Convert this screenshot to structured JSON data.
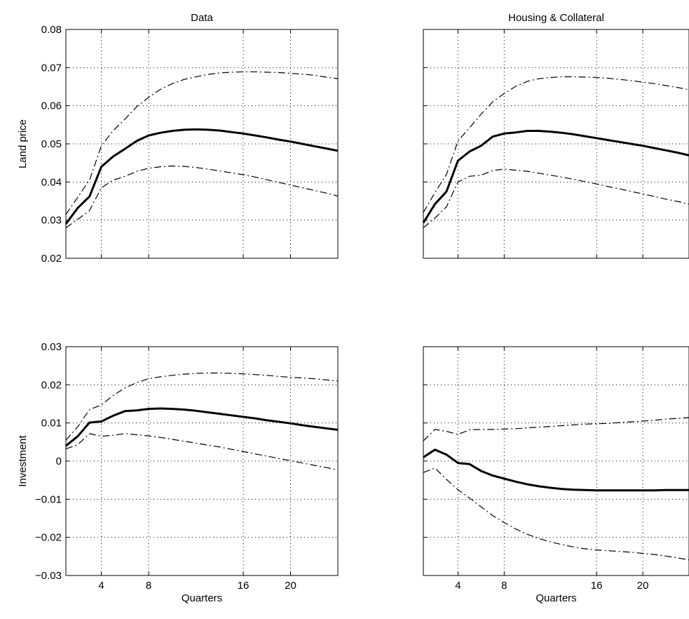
{
  "chart_data": [
    {
      "type": "line",
      "title": "Data",
      "xlabel": "",
      "ylabel": "Land price",
      "xlim": [
        1,
        24
      ],
      "ylim": [
        0.02,
        0.08
      ],
      "xticks": [
        4,
        8,
        16,
        20
      ],
      "xtick_labels": [],
      "yticks": [
        0.02,
        0.03,
        0.04,
        0.05,
        0.06,
        0.07,
        0.08
      ],
      "ytick_labels": [
        "0.02",
        "0.03",
        "0.04",
        "0.05",
        "0.06",
        "0.07",
        "0.08"
      ],
      "grid": true,
      "x": [
        1,
        2,
        3,
        4,
        5,
        6,
        7,
        8,
        9,
        10,
        11,
        12,
        13,
        14,
        15,
        16,
        17,
        18,
        19,
        20,
        21,
        22,
        23,
        24
      ],
      "series": [
        {
          "style": "solid",
          "values": [
            0.029,
            0.0332,
            0.0362,
            0.044,
            0.0467,
            0.0487,
            0.0508,
            0.0522,
            0.0529,
            0.0534,
            0.0537,
            0.0538,
            0.0537,
            0.0535,
            0.0531,
            0.0527,
            0.0522,
            0.0517,
            0.0511,
            0.0506,
            0.05,
            0.0494,
            0.0488,
            0.0482
          ]
        },
        {
          "style": "dash-dot",
          "values": [
            0.0315,
            0.036,
            0.0405,
            0.0495,
            0.0535,
            0.0565,
            0.0598,
            0.0622,
            0.0643,
            0.0658,
            0.0669,
            0.0676,
            0.0682,
            0.0686,
            0.0688,
            0.0689,
            0.0689,
            0.0688,
            0.0687,
            0.0685,
            0.0683,
            0.068,
            0.0675,
            0.0671
          ]
        },
        {
          "style": "dash-dot",
          "values": [
            0.028,
            0.0302,
            0.0325,
            0.0385,
            0.0405,
            0.0415,
            0.0428,
            0.0436,
            0.044,
            0.0442,
            0.0441,
            0.0438,
            0.0434,
            0.0429,
            0.0424,
            0.0419,
            0.0413,
            0.0406,
            0.0399,
            0.0392,
            0.0385,
            0.0378,
            0.0371,
            0.0363
          ]
        }
      ]
    },
    {
      "type": "line",
      "title": "Housing & Collateral",
      "xlabel": "",
      "ylabel": "",
      "xlim": [
        1,
        24
      ],
      "ylim": [
        0.02,
        0.08
      ],
      "xticks": [
        4,
        8,
        16,
        20
      ],
      "xtick_labels": [],
      "yticks": [
        0.02,
        0.03,
        0.04,
        0.05,
        0.06,
        0.07,
        0.08
      ],
      "ytick_labels": [],
      "grid": true,
      "x": [
        1,
        2,
        3,
        4,
        5,
        6,
        7,
        8,
        9,
        10,
        11,
        12,
        13,
        14,
        15,
        16,
        17,
        18,
        19,
        20,
        21,
        22,
        23,
        24
      ],
      "series": [
        {
          "style": "solid",
          "values": [
            0.0293,
            0.0342,
            0.0375,
            0.0456,
            0.048,
            0.0495,
            0.0519,
            0.0527,
            0.053,
            0.0534,
            0.0534,
            0.0532,
            0.0529,
            0.0525,
            0.052,
            0.0515,
            0.051,
            0.0505,
            0.05,
            0.0495,
            0.0489,
            0.0483,
            0.0477,
            0.047
          ]
        },
        {
          "style": "dash-dot",
          "values": [
            0.032,
            0.0372,
            0.042,
            0.0508,
            0.0542,
            0.0578,
            0.061,
            0.0632,
            0.0651,
            0.0664,
            0.0671,
            0.0674,
            0.0676,
            0.0676,
            0.0675,
            0.0674,
            0.0672,
            0.0669,
            0.0666,
            0.0662,
            0.0658,
            0.0653,
            0.0648,
            0.0642
          ]
        },
        {
          "style": "dash-dot",
          "values": [
            0.028,
            0.0305,
            0.0335,
            0.04,
            0.0415,
            0.0418,
            0.043,
            0.0434,
            0.0431,
            0.0428,
            0.0423,
            0.0418,
            0.0413,
            0.0407,
            0.0401,
            0.0395,
            0.0388,
            0.0382,
            0.0375,
            0.0369,
            0.0362,
            0.0355,
            0.0349,
            0.0342
          ]
        }
      ]
    },
    {
      "type": "line",
      "title": "",
      "xlabel": "Quarters",
      "ylabel": "Investment",
      "xlim": [
        1,
        24
      ],
      "ylim": [
        -0.03,
        0.03
      ],
      "xticks": [
        4,
        8,
        16,
        20
      ],
      "xtick_labels": [
        "4",
        "8",
        "16",
        "20"
      ],
      "yticks": [
        -0.03,
        -0.02,
        -0.01,
        0,
        0.01,
        0.02,
        0.03
      ],
      "ytick_labels": [
        "−0.03",
        "−0.02",
        "−0.01",
        "0",
        "0.01",
        "0.02",
        "0.03"
      ],
      "grid": true,
      "x": [
        1,
        2,
        3,
        4,
        5,
        6,
        7,
        8,
        9,
        10,
        11,
        12,
        13,
        14,
        15,
        16,
        17,
        18,
        19,
        20,
        21,
        22,
        23,
        24
      ],
      "series": [
        {
          "style": "solid",
          "values": [
            0.004,
            0.0065,
            0.0101,
            0.0104,
            0.0119,
            0.0131,
            0.0133,
            0.0137,
            0.0138,
            0.0137,
            0.0135,
            0.0132,
            0.0128,
            0.0124,
            0.012,
            0.0116,
            0.0112,
            0.0107,
            0.0103,
            0.0099,
            0.0094,
            0.009,
            0.0086,
            0.0082
          ]
        },
        {
          "style": "dash-dot",
          "values": [
            0.0055,
            0.009,
            0.0135,
            0.0147,
            0.0172,
            0.0192,
            0.0206,
            0.0216,
            0.0221,
            0.0225,
            0.0228,
            0.023,
            0.0231,
            0.0231,
            0.023,
            0.0229,
            0.0227,
            0.0225,
            0.0222,
            0.022,
            0.0218,
            0.0216,
            0.0213,
            0.021
          ]
        },
        {
          "style": "dash-dot",
          "values": [
            0.0032,
            0.0043,
            0.0072,
            0.0065,
            0.0068,
            0.0072,
            0.0069,
            0.0066,
            0.0062,
            0.0057,
            0.0052,
            0.0047,
            0.0042,
            0.0037,
            0.0031,
            0.0025,
            0.0019,
            0.0013,
            0.0007,
            0.0001,
            -0.0005,
            -0.0011,
            -0.0017,
            -0.0023
          ]
        }
      ]
    },
    {
      "type": "line",
      "title": "",
      "xlabel": "Quarters",
      "ylabel": "",
      "xlim": [
        1,
        24
      ],
      "ylim": [
        -0.03,
        0.03
      ],
      "xticks": [
        4,
        8,
        16,
        20
      ],
      "xtick_labels": [
        "4",
        "8",
        "16",
        "20"
      ],
      "yticks": [
        -0.03,
        -0.02,
        -0.01,
        0,
        0.01,
        0.02,
        0.03
      ],
      "ytick_labels": [],
      "grid": true,
      "x": [
        1,
        2,
        3,
        4,
        5,
        6,
        7,
        8,
        9,
        10,
        11,
        12,
        13,
        14,
        15,
        16,
        17,
        18,
        19,
        20,
        21,
        22,
        23,
        24
      ],
      "series": [
        {
          "style": "solid",
          "values": [
            0.001,
            0.003,
            0.0017,
            -0.0005,
            -0.0008,
            -0.0026,
            -0.0038,
            -0.0046,
            -0.0054,
            -0.0061,
            -0.0066,
            -0.007,
            -0.0073,
            -0.0075,
            -0.0076,
            -0.0077,
            -0.0077,
            -0.0077,
            -0.0077,
            -0.0077,
            -0.0077,
            -0.0076,
            -0.0076,
            -0.0076
          ]
        },
        {
          "style": "dash-dot",
          "values": [
            0.0053,
            0.0083,
            0.0078,
            0.007,
            0.0082,
            0.0083,
            0.0083,
            0.0084,
            0.0085,
            0.0087,
            0.0089,
            0.0091,
            0.0093,
            0.0095,
            0.0097,
            0.0098,
            0.0099,
            0.0101,
            0.0103,
            0.0105,
            0.0107,
            0.011,
            0.0112,
            0.0114
          ]
        },
        {
          "style": "dash-dot",
          "values": [
            -0.003,
            -0.0018,
            -0.0048,
            -0.0075,
            -0.0097,
            -0.012,
            -0.0143,
            -0.0161,
            -0.0178,
            -0.0192,
            -0.0203,
            -0.0212,
            -0.0219,
            -0.0225,
            -0.023,
            -0.0233,
            -0.0235,
            -0.0237,
            -0.0239,
            -0.0242,
            -0.0245,
            -0.0249,
            -0.0254,
            -0.0259
          ]
        }
      ]
    }
  ]
}
